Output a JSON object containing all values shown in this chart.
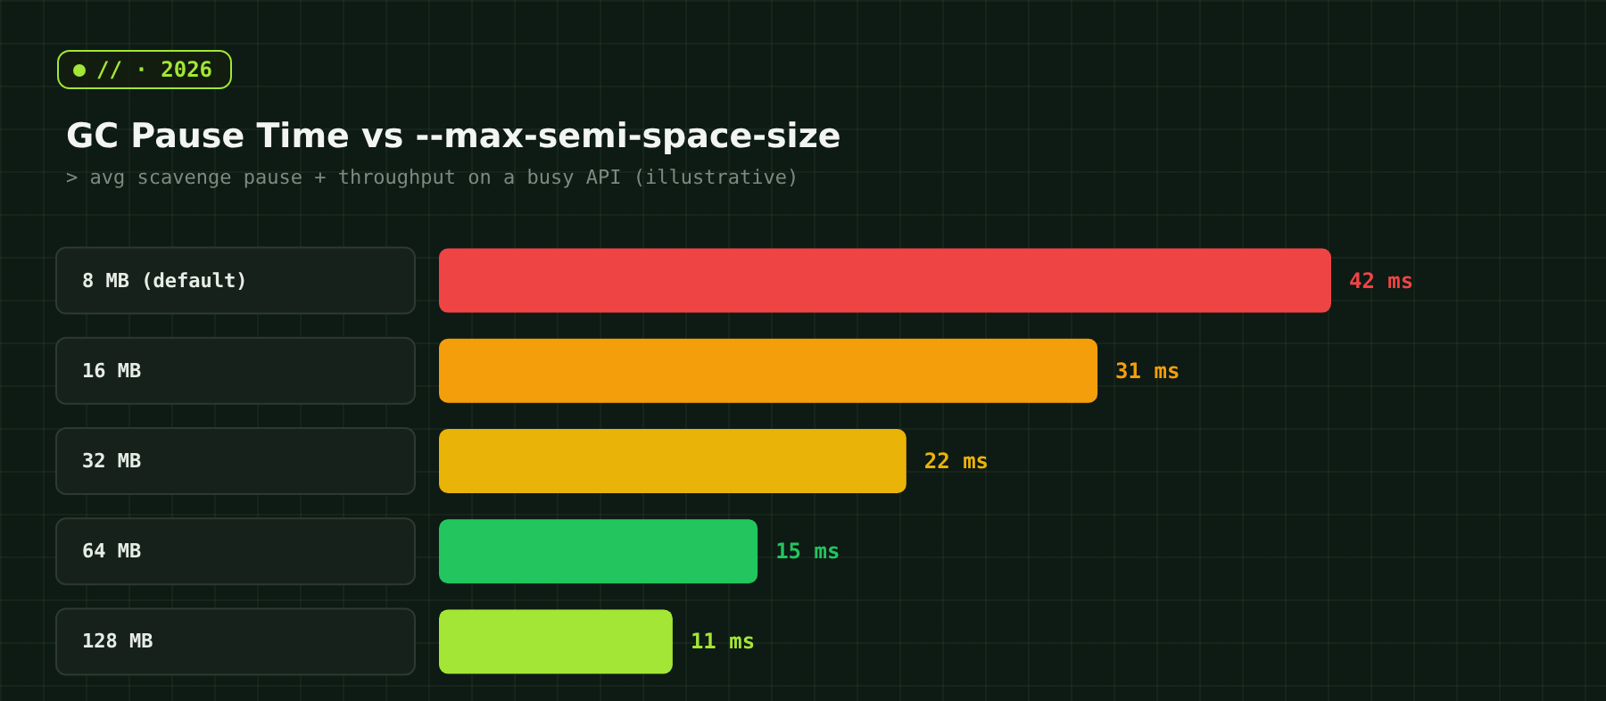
{
  "chart_data": {
    "type": "bar",
    "orientation": "horizontal",
    "title": "GC Pause Time vs --max-semi-space-size",
    "subtitle": "> avg scavenge pause + throughput on a busy API (illustrative)",
    "annotations": [
      "// · 2026"
    ],
    "categories": [
      "8 MB (default)",
      "16 MB",
      "32 MB",
      "64 MB",
      "128 MB"
    ],
    "values": [
      42,
      31,
      22,
      15,
      11
    ],
    "value_labels": [
      "42 ms",
      "31 ms",
      "22 ms",
      "15 ms",
      "11 ms"
    ],
    "colors": [
      "#ef4444",
      "#f59e0b",
      "#eab308",
      "#22c55e",
      "#a3e635"
    ]
  }
}
